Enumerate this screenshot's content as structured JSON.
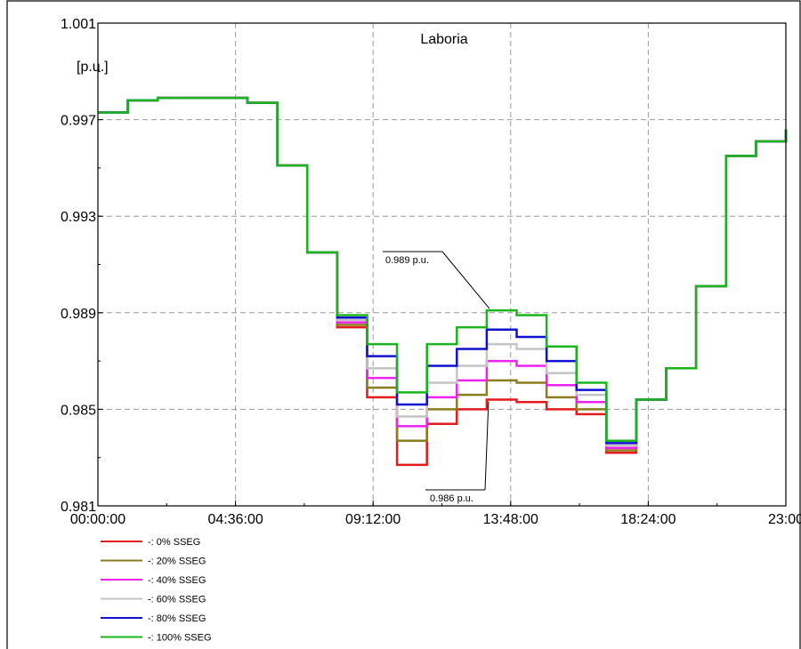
{
  "chart_data": {
    "type": "line",
    "step": true,
    "title": "Laboria",
    "ylabel": "[p.u.]",
    "xlabel": "",
    "x_range_hours": [
      0,
      23
    ],
    "ylim": [
      0.981,
      1.001
    ],
    "x_ticks": [
      {
        "hour": 0,
        "label": "00:00:00"
      },
      {
        "hour": 4.6,
        "label": "04:36:00"
      },
      {
        "hour": 9.2,
        "label": "09:12:00"
      },
      {
        "hour": 13.8,
        "label": "13:48:00"
      },
      {
        "hour": 18.4,
        "label": "18:24:00"
      },
      {
        "hour": 23,
        "label": "23:00"
      }
    ],
    "y_ticks": [
      {
        "value": 1.001,
        "label": "1.001"
      },
      {
        "value": 0.997,
        "label": "0.997"
      },
      {
        "value": 0.993,
        "label": "0.993"
      },
      {
        "value": 0.989,
        "label": "0.989"
      },
      {
        "value": 0.985,
        "label": "0.985"
      },
      {
        "value": 0.981,
        "label": "0.981"
      }
    ],
    "grid": true,
    "legend_placement": "bottom-left",
    "hours": [
      0,
      1,
      2,
      3,
      4,
      5,
      6,
      7,
      8,
      9,
      10,
      11,
      12,
      13,
      14,
      15,
      16,
      17,
      18,
      19,
      20,
      21,
      22,
      23
    ],
    "series": [
      {
        "name": "-: 0% SSEG",
        "color": "#e41a1c",
        "values": [
          0.9973,
          0.9978,
          0.9979,
          0.9979,
          0.9979,
          0.9977,
          0.9951,
          0.9915,
          0.9884,
          0.9855,
          0.9827,
          0.9844,
          0.985,
          0.9854,
          0.9853,
          0.985,
          0.9848,
          0.9832,
          0.9854,
          0.9867,
          0.9901,
          0.9955,
          0.9961,
          0.9966
        ]
      },
      {
        "name": "-: 20% SSEG",
        "color": "#8b7d1e",
        "values": [
          0.9973,
          0.9978,
          0.9979,
          0.9979,
          0.9979,
          0.9977,
          0.9951,
          0.9915,
          0.9885,
          0.9859,
          0.9837,
          0.985,
          0.9856,
          0.9862,
          0.9861,
          0.9855,
          0.985,
          0.9833,
          0.9854,
          0.9867,
          0.9901,
          0.9955,
          0.9961,
          0.9966
        ]
      },
      {
        "name": "-: 40% SSEG",
        "color": "#ee22ee",
        "values": [
          0.9973,
          0.9978,
          0.9979,
          0.9979,
          0.9979,
          0.9977,
          0.9951,
          0.9915,
          0.9886,
          0.9863,
          0.9843,
          0.9855,
          0.9862,
          0.987,
          0.9868,
          0.986,
          0.9853,
          0.9834,
          0.9854,
          0.9867,
          0.9901,
          0.9955,
          0.9961,
          0.9966
        ]
      },
      {
        "name": "-: 60% SSEG",
        "color": "#c4c4c4",
        "values": [
          0.9973,
          0.9978,
          0.9979,
          0.9979,
          0.9979,
          0.9977,
          0.9951,
          0.9915,
          0.9887,
          0.9867,
          0.9847,
          0.9861,
          0.9868,
          0.9877,
          0.9875,
          0.9865,
          0.9856,
          0.9835,
          0.9854,
          0.9867,
          0.9901,
          0.9955,
          0.9961,
          0.9966
        ]
      },
      {
        "name": "-: 80% SSEG",
        "color": "#1010d0",
        "values": [
          0.9973,
          0.9978,
          0.9979,
          0.9979,
          0.9979,
          0.9977,
          0.9951,
          0.9915,
          0.9888,
          0.9872,
          0.9852,
          0.9868,
          0.9875,
          0.9883,
          0.988,
          0.987,
          0.9858,
          0.9836,
          0.9854,
          0.9867,
          0.9901,
          0.9955,
          0.9961,
          0.9966
        ]
      },
      {
        "name": "-: 100% SSEG",
        "color": "#1ab51a",
        "values": [
          0.9973,
          0.9978,
          0.9979,
          0.9979,
          0.9979,
          0.9977,
          0.9951,
          0.9915,
          0.9889,
          0.9877,
          0.9857,
          0.9877,
          0.9884,
          0.9891,
          0.9889,
          0.9876,
          0.9861,
          0.9837,
          0.9854,
          0.9867,
          0.9901,
          0.9955,
          0.9961,
          0.9966
        ]
      }
    ],
    "annotations": [
      {
        "text": "0.989 p.u.",
        "hour": 13.0,
        "value": 0.9891
      },
      {
        "text": "0.986 p.u.",
        "hour": 13.0,
        "value": 0.9854
      }
    ]
  }
}
